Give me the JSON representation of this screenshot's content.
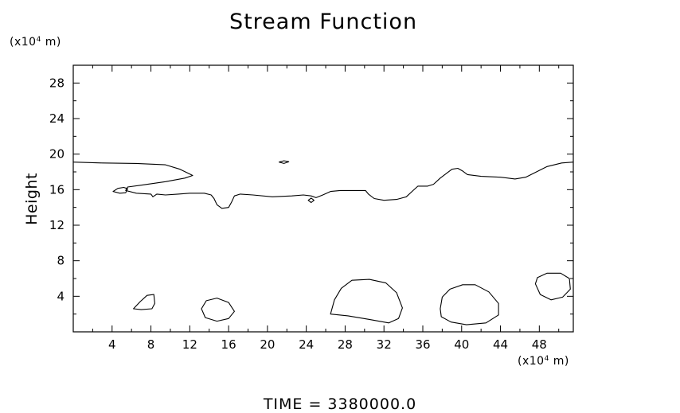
{
  "chart_data": {
    "type": "contour",
    "title": "Stream Function",
    "ylabel": "Height",
    "x_unit": {
      "prefix": "(x10",
      "exp": "4",
      "suffix": " m)"
    },
    "y_unit": {
      "prefix": "(x10",
      "exp": "4",
      "suffix": " m)"
    },
    "footer": "TIME = 3380000.0",
    "xlim": [
      0,
      51.5
    ],
    "ylim": [
      0,
      30
    ],
    "x_ticks": [
      4,
      8,
      12,
      16,
      20,
      24,
      28,
      32,
      36,
      40,
      44,
      48
    ],
    "y_ticks": [
      4,
      8,
      12,
      16,
      20,
      24,
      28
    ],
    "contours": [
      {
        "id": "upper-band",
        "closed": false,
        "points": [
          [
            0,
            19.1
          ],
          [
            3,
            19.0
          ],
          [
            6.5,
            18.95
          ],
          [
            9.5,
            18.8
          ],
          [
            11,
            18.3
          ],
          [
            12.3,
            17.6
          ],
          [
            11.5,
            17.3
          ],
          [
            9.5,
            16.9
          ],
          [
            7,
            16.5
          ],
          [
            5.6,
            16.3
          ],
          [
            5.4,
            15.9
          ],
          [
            6.5,
            15.6
          ],
          [
            8,
            15.5
          ],
          [
            8.2,
            15.2
          ],
          [
            8.6,
            15.5
          ],
          [
            9.5,
            15.4
          ],
          [
            10.8,
            15.5
          ],
          [
            12,
            15.6
          ],
          [
            13.5,
            15.6
          ],
          [
            14.2,
            15.4
          ],
          [
            14.5,
            15.0
          ],
          [
            14.8,
            14.3
          ],
          [
            15.3,
            13.9
          ],
          [
            16,
            14.0
          ],
          [
            16.3,
            14.6
          ],
          [
            16.6,
            15.3
          ],
          [
            17.2,
            15.5
          ],
          [
            18.5,
            15.4
          ],
          [
            20.5,
            15.2
          ],
          [
            22.5,
            15.3
          ],
          [
            23.7,
            15.4
          ],
          [
            24.5,
            15.3
          ],
          [
            25,
            15.1
          ],
          [
            25.7,
            15.4
          ],
          [
            26.5,
            15.8
          ],
          [
            27.5,
            15.9
          ],
          [
            29,
            15.9
          ],
          [
            30.1,
            15.9
          ],
          [
            30.4,
            15.5
          ],
          [
            31,
            15.0
          ],
          [
            32,
            14.8
          ],
          [
            33.3,
            14.9
          ],
          [
            34.3,
            15.2
          ],
          [
            35,
            15.9
          ],
          [
            35.5,
            16.4
          ],
          [
            36.5,
            16.4
          ],
          [
            37.1,
            16.6
          ],
          [
            37.8,
            17.3
          ],
          [
            38.4,
            17.8
          ],
          [
            39,
            18.3
          ],
          [
            39.6,
            18.4
          ],
          [
            40.1,
            18.1
          ],
          [
            40.6,
            17.7
          ],
          [
            42,
            17.5
          ],
          [
            44,
            17.4
          ],
          [
            45.5,
            17.2
          ],
          [
            46.6,
            17.4
          ],
          [
            47.7,
            18.0
          ],
          [
            48.8,
            18.6
          ],
          [
            50.3,
            19.0
          ],
          [
            51.5,
            19.1
          ]
        ]
      },
      {
        "id": "small-loop-left",
        "closed": true,
        "points": [
          [
            4.1,
            15.8
          ],
          [
            4.6,
            16.15
          ],
          [
            5.2,
            16.25
          ],
          [
            5.6,
            16.1
          ],
          [
            5.4,
            15.65
          ],
          [
            4.8,
            15.6
          ],
          [
            4.1,
            15.8
          ]
        ]
      },
      {
        "id": "dash-top",
        "closed": true,
        "points": [
          [
            21.2,
            19.1
          ],
          [
            21.7,
            19.25
          ],
          [
            22.2,
            19.15
          ],
          [
            21.7,
            18.95
          ],
          [
            21.2,
            19.1
          ]
        ]
      },
      {
        "id": "diamond",
        "closed": true,
        "points": [
          [
            24.2,
            14.8
          ],
          [
            24.5,
            15.05
          ],
          [
            24.8,
            14.8
          ],
          [
            24.5,
            14.55
          ],
          [
            24.2,
            14.8
          ]
        ]
      },
      {
        "id": "blob-8",
        "closed": true,
        "points": [
          [
            6.2,
            2.6
          ],
          [
            6.9,
            3.4
          ],
          [
            7.6,
            4.1
          ],
          [
            8.3,
            4.2
          ],
          [
            8.4,
            3.2
          ],
          [
            8.1,
            2.6
          ],
          [
            7.0,
            2.5
          ],
          [
            6.2,
            2.6
          ]
        ]
      },
      {
        "id": "blob-14",
        "closed": true,
        "points": [
          [
            13.2,
            2.6
          ],
          [
            13.7,
            3.5
          ],
          [
            14.8,
            3.8
          ],
          [
            16.0,
            3.3
          ],
          [
            16.6,
            2.3
          ],
          [
            16.0,
            1.5
          ],
          [
            14.8,
            1.2
          ],
          [
            13.6,
            1.6
          ],
          [
            13.2,
            2.6
          ]
        ]
      },
      {
        "id": "blob-30",
        "closed": true,
        "points": [
          [
            26.5,
            2.0
          ],
          [
            26.9,
            3.6
          ],
          [
            27.6,
            4.9
          ],
          [
            28.7,
            5.8
          ],
          [
            30.5,
            5.9
          ],
          [
            32.2,
            5.5
          ],
          [
            33.3,
            4.4
          ],
          [
            33.9,
            2.7
          ],
          [
            33.5,
            1.5
          ],
          [
            32.5,
            1.0
          ],
          [
            30.5,
            1.4
          ],
          [
            28.3,
            1.8
          ],
          [
            26.5,
            2.0
          ]
        ]
      },
      {
        "id": "blob-40",
        "closed": true,
        "points": [
          [
            37.8,
            2.6
          ],
          [
            38.0,
            3.9
          ],
          [
            38.8,
            4.8
          ],
          [
            40.1,
            5.3
          ],
          [
            41.4,
            5.3
          ],
          [
            42.8,
            4.5
          ],
          [
            43.8,
            3.2
          ],
          [
            43.8,
            1.9
          ],
          [
            42.5,
            1.0
          ],
          [
            40.5,
            0.8
          ],
          [
            38.9,
            1.1
          ],
          [
            37.9,
            1.7
          ],
          [
            37.8,
            2.6
          ]
        ]
      },
      {
        "id": "blob-49",
        "closed": true,
        "points": [
          [
            47.6,
            5.4
          ],
          [
            48.1,
            4.2
          ],
          [
            49.2,
            3.6
          ],
          [
            50.4,
            3.9
          ],
          [
            51.2,
            4.8
          ],
          [
            51.1,
            6.0
          ],
          [
            50.2,
            6.6
          ],
          [
            48.8,
            6.6
          ],
          [
            47.8,
            6.1
          ],
          [
            47.6,
            5.4
          ]
        ]
      }
    ]
  }
}
